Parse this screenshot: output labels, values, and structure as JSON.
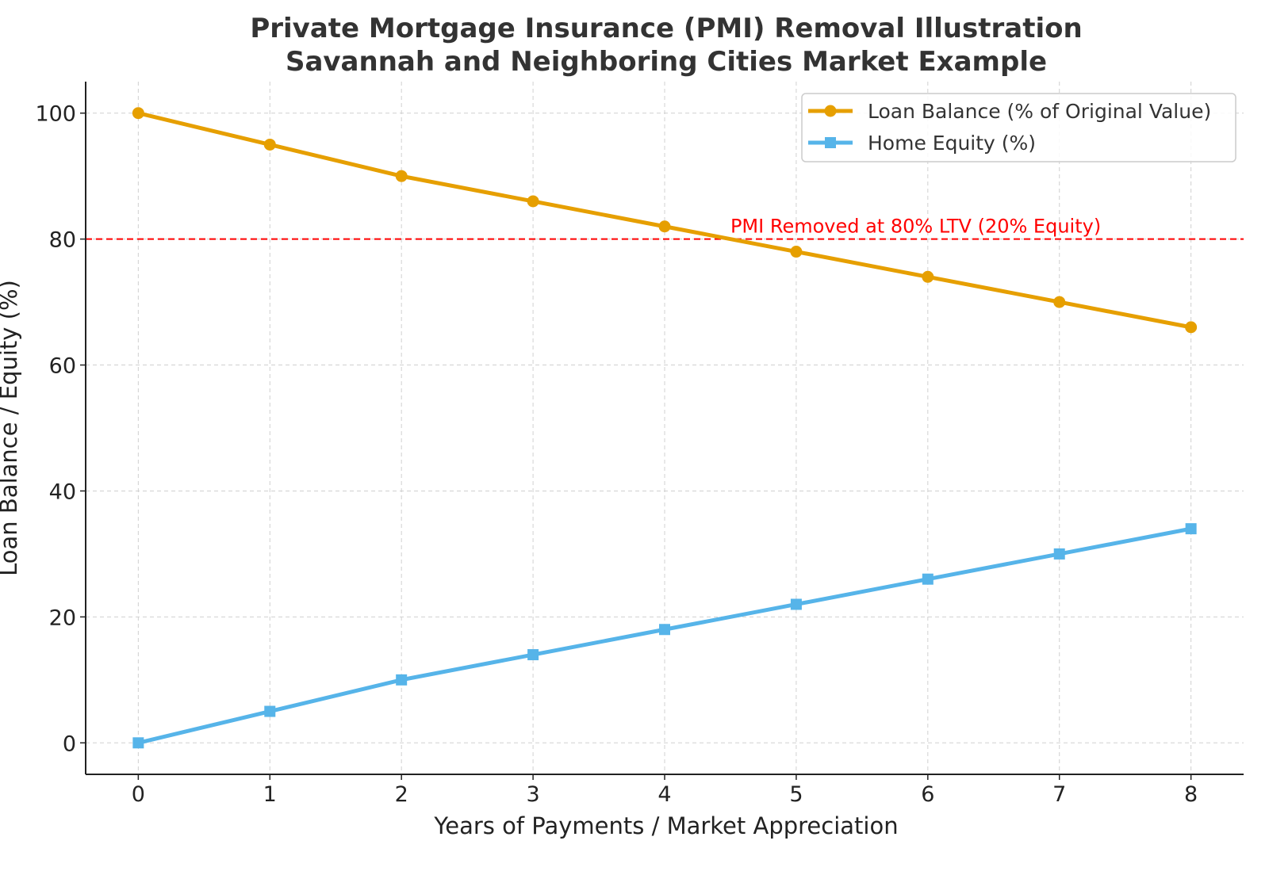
{
  "chart_data": {
    "type": "line",
    "title": "Private Mortgage Insurance (PMI) Removal Illustration",
    "subtitle": "Savannah and Neighboring Cities Market Example",
    "xlabel": "Years of Payments / Market Appreciation",
    "ylabel": "Loan Balance / Equity (%)",
    "x": [
      0,
      1,
      2,
      3,
      4,
      5,
      6,
      7,
      8
    ],
    "xticks": [
      "0",
      "1",
      "2",
      "3",
      "4",
      "5",
      "6",
      "7",
      "8"
    ],
    "yticks": [
      "0",
      "20",
      "40",
      "60",
      "80",
      "100"
    ],
    "xlim": [
      -0.4,
      8.4
    ],
    "ylim": [
      -5,
      105
    ],
    "grid": true,
    "legend_position": "top-right",
    "series": [
      {
        "name": "Loan Balance (% of Original Value)",
        "color": "#E69F00",
        "marker": "circle",
        "values": [
          100,
          95,
          90,
          86,
          82,
          78,
          74,
          70,
          66
        ]
      },
      {
        "name": "Home Equity (%)",
        "color": "#56B4E9",
        "marker": "square",
        "values": [
          0,
          5,
          10,
          14,
          18,
          22,
          26,
          30,
          34
        ]
      }
    ],
    "reference_line": {
      "y": 80,
      "color": "#FF0000",
      "style": "dashed",
      "label": "PMI Removed at 80% LTV (20% Equity)",
      "label_x": 4.5
    }
  }
}
